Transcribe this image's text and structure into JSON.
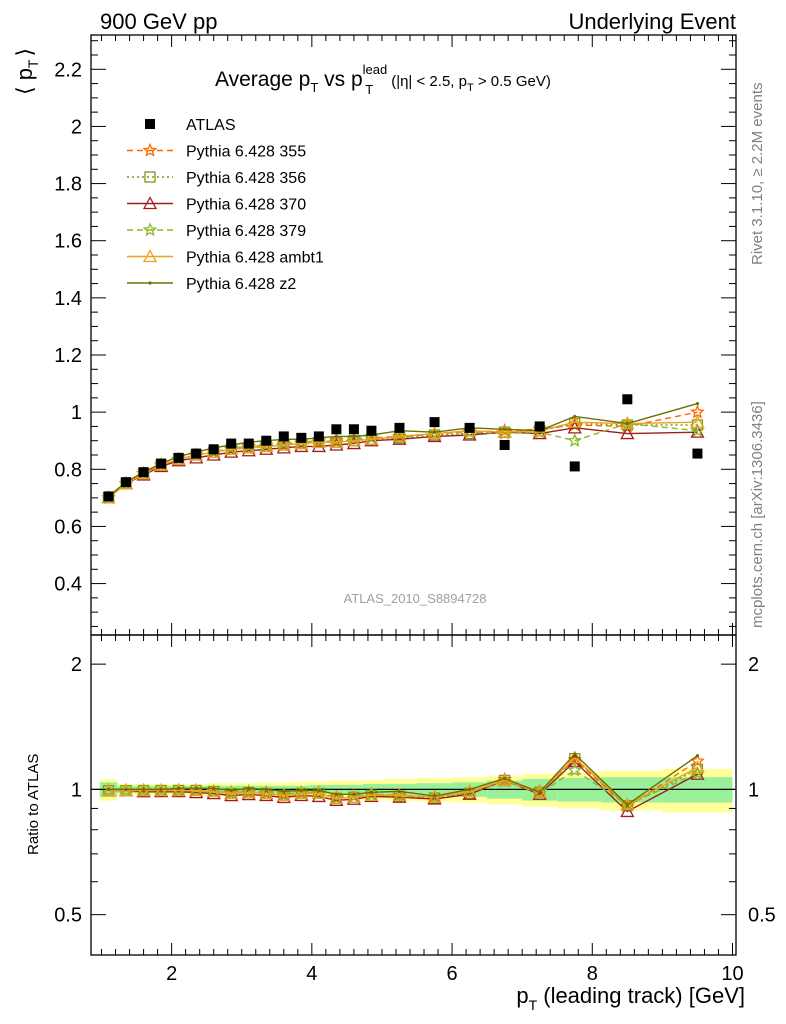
{
  "header": {
    "left": "900 GeV pp",
    "right": "Underlying Event"
  },
  "side_labels": {
    "rivet": "Rivet 3.1.10, ≥ 2.2M events",
    "mcplots": "mcplots.cern.ch [arXiv:1306.3436]"
  },
  "chart_data": {
    "type": "scatter",
    "title": {
      "main": "Average p",
      "sub1": "T",
      "vs": " vs p",
      "lead_sup": "lead",
      "lead_sub": "T",
      "cuts_a": "(|η| < 2.5, p",
      "cuts_sub": "T",
      "cuts_b": " > 0.5 GeV)"
    },
    "watermark": "ATLAS_2010_S8894728",
    "xlabel": "p_T (leading track) [GeV]",
    "xlabel_parts": {
      "p": "p",
      "sub": "T",
      "rest": " (leading track) [GeV]"
    },
    "ylabel_parts": {
      "left": "⟨ p",
      "sub": "T",
      "right": "⟩"
    },
    "xlim": [
      0.85,
      10.05
    ],
    "ylim": [
      0.22,
      2.32
    ],
    "ratio_ylim": [
      0.4,
      2.35
    ],
    "ratio_ylabel": "Ratio to ATLAS",
    "x_ticks": [
      "2",
      "4",
      "6",
      "8",
      "10"
    ],
    "y_ticks": [
      "0.4",
      "0.6",
      "0.8",
      "1",
      "1.2",
      "1.4",
      "1.6",
      "1.8",
      "2",
      "2.2"
    ],
    "ratio_y_ticks": [
      "0.5",
      "1",
      "2"
    ],
    "x": [
      1.1,
      1.35,
      1.6,
      1.85,
      2.1,
      2.35,
      2.6,
      2.85,
      3.1,
      3.35,
      3.6,
      3.85,
      4.1,
      4.35,
      4.6,
      4.85,
      5.25,
      5.75,
      6.25,
      6.75,
      7.25,
      7.75,
      8.5,
      9.5
    ],
    "atlas": {
      "name": "ATLAS",
      "values": [
        0.705,
        0.755,
        0.79,
        0.82,
        0.84,
        0.855,
        0.87,
        0.89,
        0.89,
        0.9,
        0.915,
        0.91,
        0.915,
        0.94,
        0.94,
        0.935,
        0.945,
        0.965,
        0.945,
        0.885,
        0.95,
        0.81,
        1.045,
        0.855
      ],
      "stat_band": [
        0.04,
        0.02,
        0.02,
        0.02,
        0.02,
        0.02,
        0.02,
        0.02,
        0.02,
        0.02,
        0.02,
        0.02,
        0.025,
        0.025,
        0.025,
        0.03,
        0.03,
        0.035,
        0.04,
        0.05,
        0.06,
        0.065,
        0.07,
        0.07
      ],
      "total_band": [
        0.06,
        0.03,
        0.03,
        0.03,
        0.03,
        0.03,
        0.035,
        0.035,
        0.035,
        0.04,
        0.04,
        0.045,
        0.045,
        0.05,
        0.05,
        0.055,
        0.06,
        0.065,
        0.07,
        0.08,
        0.09,
        0.1,
        0.11,
        0.12
      ]
    },
    "series": [
      {
        "name": "Pythia 6.428 355",
        "color": "#ff6600",
        "dash": "6,4",
        "marker": "star",
        "values": [
          0.7,
          0.75,
          0.785,
          0.815,
          0.835,
          0.85,
          0.86,
          0.87,
          0.875,
          0.88,
          0.885,
          0.89,
          0.895,
          0.9,
          0.905,
          0.91,
          0.915,
          0.925,
          0.93,
          0.935,
          0.94,
          0.955,
          0.95,
          1.0
        ]
      },
      {
        "name": "Pythia 6.428 356",
        "color": "#7a9a1a",
        "dash": "2,3",
        "marker": "square",
        "values": [
          0.7,
          0.75,
          0.785,
          0.815,
          0.835,
          0.85,
          0.86,
          0.87,
          0.875,
          0.88,
          0.885,
          0.89,
          0.895,
          0.895,
          0.9,
          0.905,
          0.91,
          0.92,
          0.925,
          0.93,
          0.935,
          0.96,
          0.955,
          0.955
        ]
      },
      {
        "name": "Pythia 6.428 370",
        "color": "#a01c1c",
        "dash": "",
        "marker": "triangle",
        "values": [
          0.7,
          0.75,
          0.78,
          0.81,
          0.83,
          0.84,
          0.85,
          0.86,
          0.865,
          0.87,
          0.875,
          0.88,
          0.88,
          0.885,
          0.89,
          0.9,
          0.905,
          0.915,
          0.92,
          0.93,
          0.925,
          0.945,
          0.925,
          0.93
        ]
      },
      {
        "name": "Pythia 6.428 379",
        "color": "#8ab828",
        "dash": "6,4",
        "marker": "star",
        "values": [
          0.7,
          0.75,
          0.785,
          0.815,
          0.835,
          0.85,
          0.86,
          0.875,
          0.88,
          0.885,
          0.89,
          0.895,
          0.9,
          0.895,
          0.905,
          0.91,
          0.91,
          0.925,
          0.93,
          0.925,
          0.93,
          0.9,
          0.96,
          0.935
        ]
      },
      {
        "name": "Pythia 6.428 ambt1",
        "color": "#f0a020",
        "dash": "",
        "marker": "triangle",
        "values": [
          0.7,
          0.75,
          0.785,
          0.815,
          0.835,
          0.85,
          0.86,
          0.87,
          0.875,
          0.88,
          0.885,
          0.89,
          0.895,
          0.895,
          0.9,
          0.905,
          0.915,
          0.925,
          0.935,
          0.93,
          0.935,
          0.965,
          0.96,
          0.965
        ]
      },
      {
        "name": "Pythia 6.428 z2",
        "color": "#707000",
        "dash": "",
        "marker": "dot",
        "values": [
          0.705,
          0.755,
          0.79,
          0.82,
          0.845,
          0.86,
          0.875,
          0.885,
          0.895,
          0.9,
          0.905,
          0.905,
          0.91,
          0.915,
          0.915,
          0.92,
          0.935,
          0.93,
          0.945,
          0.94,
          0.935,
          0.985,
          0.96,
          1.03
        ]
      }
    ]
  }
}
